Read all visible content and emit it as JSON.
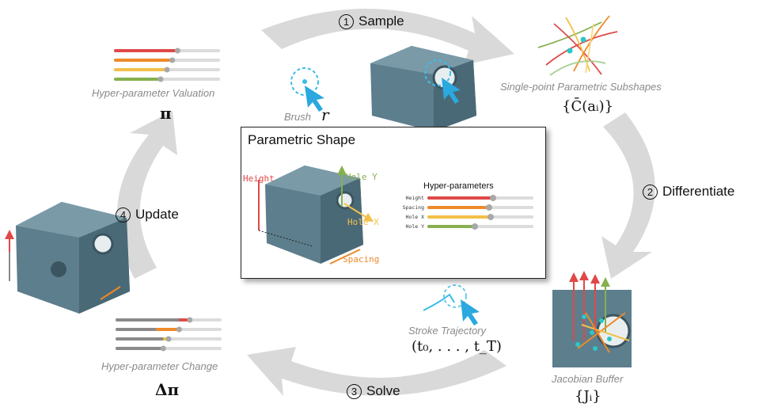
{
  "steps": [
    {
      "num": "1",
      "label": "Sample"
    },
    {
      "num": "2",
      "label": "Differentiate"
    },
    {
      "num": "3",
      "label": "Solve"
    },
    {
      "num": "4",
      "label": "Update"
    }
  ],
  "nodes": {
    "valuation": {
      "caption": "Hyper-parameter Valuation",
      "symbol": "π"
    },
    "subshapes": {
      "caption": "Single-point Parametric Subshapes",
      "symbol": "{C̄(aᵢ)}"
    },
    "jacobian": {
      "caption": "Jacobian Buffer",
      "symbol": "{Jᵢ}"
    },
    "stroke": {
      "caption": "Stroke Trajectory",
      "symbol": "(t₀, . . . , t_T)"
    },
    "change": {
      "caption": "Hyper-parameter Change",
      "symbol": "Δπ"
    },
    "brush": {
      "caption": "Brush",
      "symbol": "r"
    }
  },
  "center": {
    "title": "Parametric Shape",
    "hp_title": "Hyper-parameters",
    "params": [
      {
        "name": "Height",
        "value": 0.62,
        "color": "#e04848"
      },
      {
        "name": "Spacing",
        "value": 0.58,
        "color": "#ee8a2a"
      },
      {
        "name": "Hole X",
        "value": 0.6,
        "color": "#f2c04a"
      },
      {
        "name": "Hole Y",
        "value": 0.45,
        "color": "#86b04e"
      }
    ],
    "shape_labels": {
      "height": "Height",
      "hole_y": "Hole Y",
      "hole_x": "Hole X",
      "spacing": "Spacing"
    }
  },
  "valuation_bars": [
    {
      "color": "#e04848",
      "value": 0.6
    },
    {
      "color": "#ee8a2a",
      "value": 0.55
    },
    {
      "color": "#f2c04a",
      "value": 0.5
    },
    {
      "color": "#86b04e",
      "value": 0.44
    }
  ],
  "change_bars": [
    {
      "color": "#8a8a8a",
      "accent": "#e04848",
      "value": 0.7,
      "delta": 0.1
    },
    {
      "color": "#8a8a8a",
      "accent": "#ee8a2a",
      "value": 0.6,
      "delta": 0.22
    },
    {
      "color": "#8a8a8a",
      "accent": "#f2c04a",
      "value": 0.5,
      "delta": 0.05
    },
    {
      "color": "#8a8a8a",
      "accent": "#86b04e",
      "value": 0.45,
      "delta": 0.0
    }
  ]
}
